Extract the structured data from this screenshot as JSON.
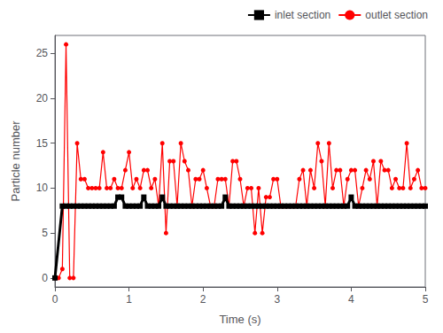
{
  "chart_data": {
    "type": "line",
    "xlabel": "Time (s)",
    "ylabel": "Particle number",
    "xlim": [
      0,
      5
    ],
    "ylim": [
      -1,
      27
    ],
    "xticks": [
      0,
      1,
      2,
      3,
      4,
      5
    ],
    "yticks": [
      0,
      5,
      10,
      15,
      20,
      25
    ],
    "grid": false,
    "legend": "upper right",
    "series": [
      {
        "name": "inlet section",
        "color": "#000000",
        "marker": "square",
        "line_style": "solid",
        "x": [
          0.0,
          0.1,
          0.15,
          0.2,
          0.25,
          0.3,
          0.35,
          0.4,
          0.45,
          0.5,
          0.55,
          0.6,
          0.65,
          0.7,
          0.75,
          0.8,
          0.85,
          0.9,
          0.95,
          1.0,
          1.05,
          1.1,
          1.15,
          1.2,
          1.25,
          1.3,
          1.35,
          1.4,
          1.45,
          1.5,
          1.55,
          1.6,
          1.65,
          1.7,
          1.75,
          1.8,
          1.85,
          1.9,
          1.95,
          2.0,
          2.05,
          2.1,
          2.15,
          2.2,
          2.25,
          2.3,
          2.35,
          2.4,
          2.45,
          2.5,
          2.55,
          2.6,
          2.65,
          2.7,
          2.75,
          2.8,
          2.85,
          2.9,
          2.95,
          3.0,
          3.05,
          3.1,
          3.15,
          3.2,
          3.25,
          3.3,
          3.35,
          3.4,
          3.45,
          3.5,
          3.55,
          3.6,
          3.65,
          3.7,
          3.75,
          3.8,
          3.85,
          3.9,
          3.95,
          4.0,
          4.05,
          4.1,
          4.15,
          4.2,
          4.25,
          4.3,
          4.35,
          4.4,
          4.45,
          4.5,
          4.55,
          4.6,
          4.65,
          4.7,
          4.75,
          4.8,
          4.85,
          4.9,
          4.95,
          5.0
        ],
        "values": [
          0,
          8,
          8,
          8,
          8,
          8,
          8,
          8,
          8,
          8,
          8,
          8,
          8,
          8,
          8,
          8,
          9,
          9,
          8,
          8,
          8,
          8,
          8,
          9,
          8,
          8,
          8,
          8,
          9,
          8,
          8,
          8,
          8,
          8,
          8,
          8,
          8,
          8,
          8,
          8,
          8,
          8,
          8,
          8,
          8,
          9,
          8,
          8,
          8,
          8,
          8,
          8,
          8,
          8,
          8,
          8,
          8,
          8,
          8,
          8,
          8,
          8,
          8,
          8,
          8,
          8,
          8,
          8,
          8,
          8,
          8,
          8,
          8,
          8,
          8,
          8,
          8,
          8,
          8,
          9,
          8,
          8,
          8,
          8,
          8,
          8,
          8,
          8,
          8,
          8,
          8,
          8,
          8,
          8,
          8,
          8,
          8,
          8,
          8,
          8
        ]
      },
      {
        "name": "outlet section",
        "color": "#ff0000",
        "marker": "circle",
        "line_style": "solid",
        "x": [
          0.0,
          0.05,
          0.1,
          0.15,
          0.2,
          0.25,
          0.3,
          0.35,
          0.4,
          0.45,
          0.5,
          0.55,
          0.6,
          0.65,
          0.7,
          0.75,
          0.8,
          0.85,
          0.9,
          0.95,
          1.0,
          1.05,
          1.1,
          1.15,
          1.2,
          1.25,
          1.3,
          1.35,
          1.4,
          1.45,
          1.5,
          1.55,
          1.6,
          1.65,
          1.7,
          1.75,
          1.8,
          1.85,
          1.9,
          1.95,
          2.0,
          2.05,
          2.1,
          2.15,
          2.2,
          2.25,
          2.3,
          2.35,
          2.4,
          2.45,
          2.5,
          2.55,
          2.6,
          2.65,
          2.7,
          2.75,
          2.8,
          2.85,
          2.9,
          2.95,
          3.0,
          3.05,
          3.1,
          3.15,
          3.2,
          3.25,
          3.3,
          3.35,
          3.4,
          3.45,
          3.5,
          3.55,
          3.6,
          3.65,
          3.7,
          3.75,
          3.8,
          3.85,
          3.9,
          3.95,
          4.0,
          4.05,
          4.1,
          4.15,
          4.2,
          4.25,
          4.3,
          4.35,
          4.4,
          4.45,
          4.5,
          4.55,
          4.6,
          4.65,
          4.7,
          4.75,
          4.8,
          4.85,
          4.9,
          4.95,
          5.0
        ],
        "values": [
          0,
          0,
          1,
          26,
          0,
          0,
          15,
          11,
          11,
          10,
          10,
          10,
          10,
          14,
          10,
          10,
          11,
          10,
          10,
          12,
          14,
          10,
          11,
          10,
          12,
          12,
          10,
          11,
          8,
          15,
          5,
          13,
          13,
          8,
          15,
          13,
          12,
          8,
          11,
          11,
          12,
          10,
          8,
          8,
          11,
          11,
          11,
          8,
          13,
          13,
          11,
          8,
          10,
          10,
          5,
          10,
          5,
          9,
          9,
          11,
          11,
          8,
          8,
          8,
          8,
          8,
          11,
          12,
          8,
          12,
          10,
          15,
          13,
          8,
          15,
          10,
          12,
          12,
          8,
          11,
          12,
          12,
          8,
          10,
          12,
          11,
          13,
          8,
          13,
          12,
          12,
          10,
          11,
          10,
          10,
          15,
          10,
          11,
          12,
          10,
          10
        ]
      }
    ]
  }
}
